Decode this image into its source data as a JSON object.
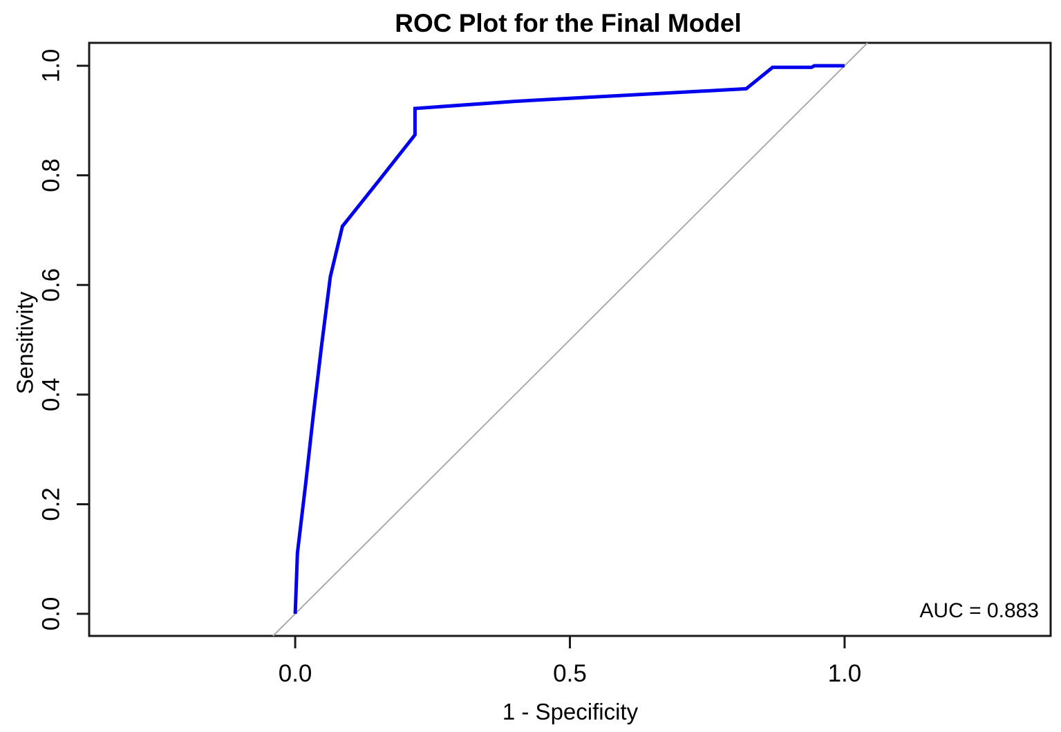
{
  "page": {
    "background": "#ffffff"
  },
  "chart_data": {
    "type": "line",
    "title": "ROC Plot for the Final Model",
    "xlabel": "1 - Specificity",
    "ylabel": "Sensitivity",
    "grid": false,
    "legend": "none",
    "xlim": [
      -0.375,
      1.375
    ],
    "ylim": [
      -0.0403,
      1.0417
    ],
    "x_ticks": {
      "values": [
        0.0,
        0.5,
        1.0
      ],
      "labels": [
        "0.0",
        "0.5",
        "1.0"
      ]
    },
    "y_ticks": {
      "values": [
        0.0,
        0.2,
        0.4,
        0.6,
        0.8,
        1.0
      ],
      "labels": [
        "0.0",
        "0.2",
        "0.4",
        "0.6",
        "0.8",
        "1.0"
      ]
    },
    "series": [
      {
        "name": "roc-curve",
        "color": "#0000EE",
        "stroke_width": 5,
        "points": [
          [
            0.0,
            0.0
          ],
          [
            0.004,
            0.111
          ],
          [
            0.019,
            0.237
          ],
          [
            0.033,
            0.363
          ],
          [
            0.048,
            0.489
          ],
          [
            0.064,
            0.615
          ],
          [
            0.086,
            0.707
          ],
          [
            0.152,
            0.79
          ],
          [
            0.218,
            0.874
          ],
          [
            0.218,
            0.922
          ],
          [
            0.4,
            0.935
          ],
          [
            0.6,
            0.946
          ],
          [
            0.821,
            0.958
          ],
          [
            0.869,
            0.997
          ],
          [
            0.94,
            0.997
          ],
          [
            0.945,
            1.0
          ],
          [
            1.0,
            1.0
          ]
        ]
      },
      {
        "name": "chance-diagonal",
        "color": "#ABABAB",
        "stroke_width": 2,
        "points": [
          [
            -0.0403,
            -0.0403
          ],
          [
            1.0417,
            1.0417
          ]
        ]
      }
    ],
    "annotation": {
      "text": "AUC = 0.883"
    },
    "auc": 0.883,
    "frame_color": "#1a1a1a",
    "tick_color": "#1a1a1a",
    "text_color": "#000000"
  }
}
